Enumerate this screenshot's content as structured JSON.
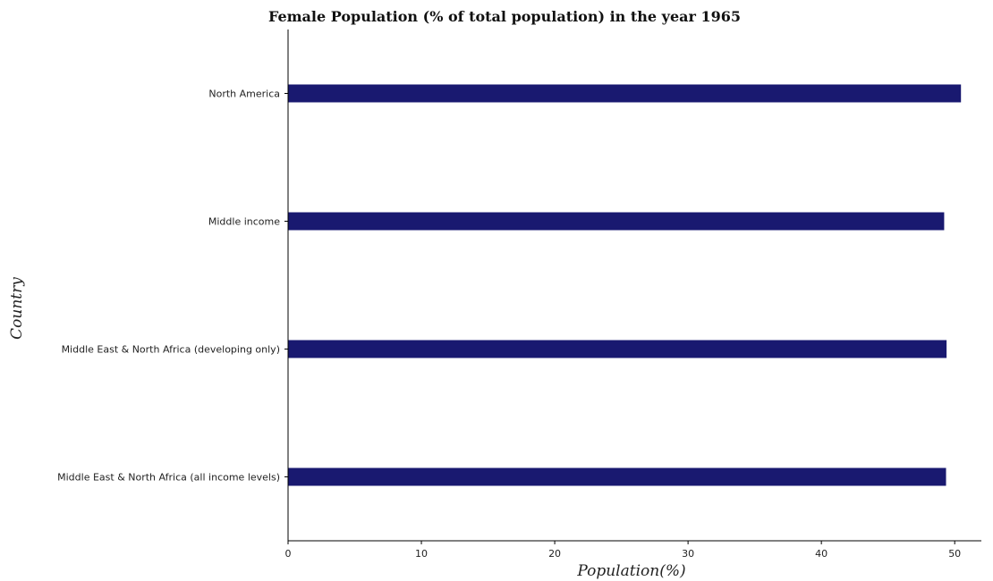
{
  "chart_data": {
    "type": "bar",
    "orientation": "horizontal",
    "title": "Female Population (% of total population) in the year 1965",
    "xlabel": "Population(%)",
    "ylabel": "Country",
    "categories": [
      "Middle East & North Africa (all income levels)",
      "Middle East & North Africa (developing only)",
      "Middle income",
      "North America"
    ],
    "values": [
      49.35,
      49.39,
      49.21,
      50.47
    ],
    "xlim": [
      0,
      52
    ],
    "xticks": [
      0,
      10,
      20,
      30,
      40,
      50
    ],
    "grid": false,
    "bar_color": "#191970"
  }
}
